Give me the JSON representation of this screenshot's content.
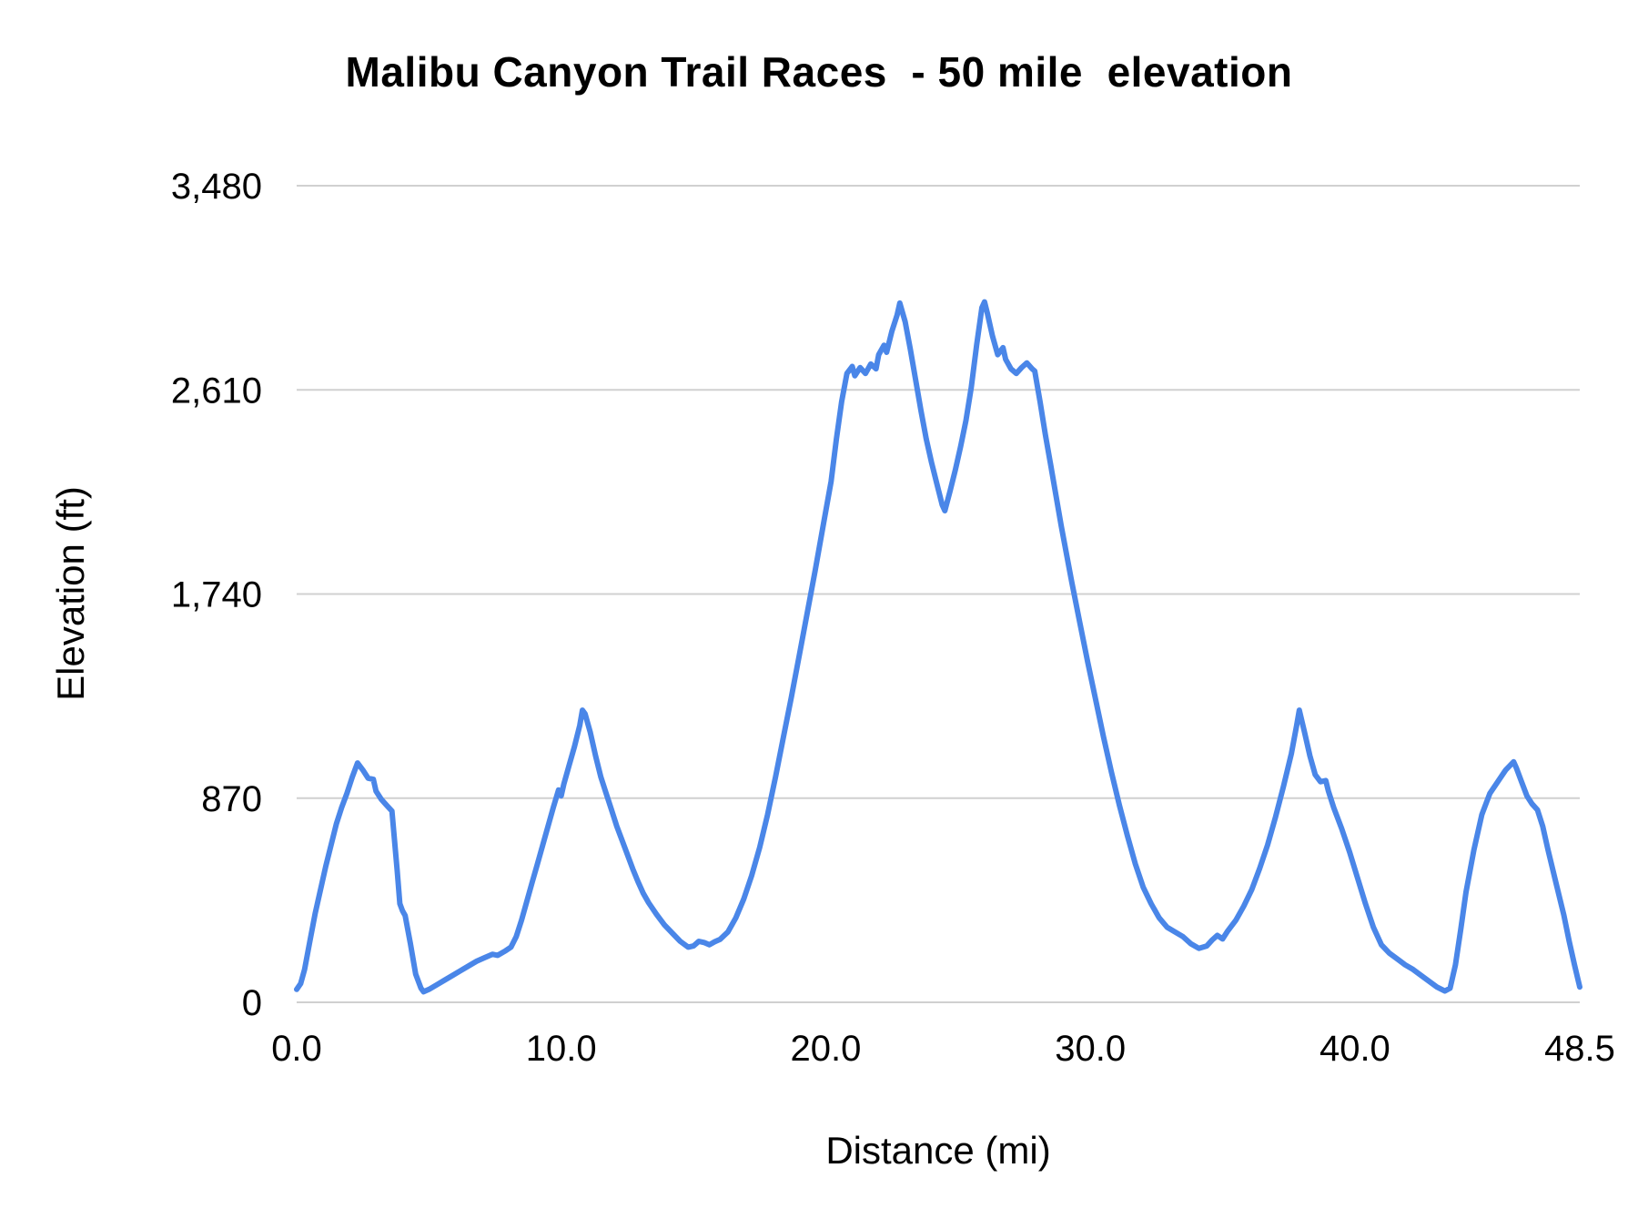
{
  "chart_data": {
    "type": "line",
    "title": "Malibu Canyon Trail Races  - 50 mile  elevation",
    "xlabel": "Distance (mi)",
    "ylabel": "Elevation (ft)",
    "xlim": [
      0,
      48.5
    ],
    "ylim": [
      0,
      3480
    ],
    "grid": true,
    "legend": "none",
    "line_color": "#4a86e8",
    "grid_color": "#d0d0d0",
    "text_color": "#000000",
    "x_ticks": [
      {
        "value": 0,
        "label": "0.0"
      },
      {
        "value": 10,
        "label": "10.0"
      },
      {
        "value": 20,
        "label": "20.0"
      },
      {
        "value": 30,
        "label": "30.0"
      },
      {
        "value": 40,
        "label": "40.0"
      },
      {
        "value": 48.5,
        "label": "48.5"
      }
    ],
    "y_ticks": [
      {
        "value": 0,
        "label": "0"
      },
      {
        "value": 870,
        "label": "870"
      },
      {
        "value": 1740,
        "label": "1,740"
      },
      {
        "value": 2610,
        "label": "2,610"
      },
      {
        "value": 3480,
        "label": "3,480"
      }
    ],
    "series": [
      {
        "name": "elevation",
        "points": [
          [
            0.0,
            55
          ],
          [
            0.15,
            80
          ],
          [
            0.3,
            140
          ],
          [
            0.5,
            260
          ],
          [
            0.7,
            380
          ],
          [
            0.9,
            480
          ],
          [
            1.1,
            580
          ],
          [
            1.3,
            670
          ],
          [
            1.5,
            760
          ],
          [
            1.7,
            830
          ],
          [
            1.9,
            890
          ],
          [
            2.1,
            960
          ],
          [
            2.3,
            1020
          ],
          [
            2.5,
            990
          ],
          [
            2.7,
            955
          ],
          [
            2.9,
            950
          ],
          [
            3.0,
            900
          ],
          [
            3.2,
            865
          ],
          [
            3.4,
            840
          ],
          [
            3.6,
            815
          ],
          [
            3.8,
            560
          ],
          [
            3.9,
            420
          ],
          [
            4.0,
            390
          ],
          [
            4.1,
            370
          ],
          [
            4.3,
            250
          ],
          [
            4.5,
            120
          ],
          [
            4.7,
            60
          ],
          [
            4.8,
            45
          ],
          [
            5.0,
            55
          ],
          [
            5.3,
            75
          ],
          [
            5.6,
            95
          ],
          [
            5.9,
            115
          ],
          [
            6.2,
            135
          ],
          [
            6.5,
            155
          ],
          [
            6.8,
            175
          ],
          [
            7.1,
            190
          ],
          [
            7.4,
            205
          ],
          [
            7.6,
            200
          ],
          [
            7.9,
            220
          ],
          [
            8.1,
            235
          ],
          [
            8.3,
            280
          ],
          [
            8.5,
            350
          ],
          [
            8.7,
            430
          ],
          [
            8.9,
            510
          ],
          [
            9.1,
            590
          ],
          [
            9.3,
            670
          ],
          [
            9.5,
            750
          ],
          [
            9.7,
            830
          ],
          [
            9.9,
            905
          ],
          [
            10.0,
            880
          ],
          [
            10.1,
            930
          ],
          [
            10.3,
            1010
          ],
          [
            10.5,
            1090
          ],
          [
            10.7,
            1180
          ],
          [
            10.8,
            1245
          ],
          [
            10.9,
            1230
          ],
          [
            11.1,
            1150
          ],
          [
            11.3,
            1050
          ],
          [
            11.5,
            960
          ],
          [
            11.7,
            890
          ],
          [
            11.9,
            820
          ],
          [
            12.1,
            750
          ],
          [
            12.3,
            690
          ],
          [
            12.5,
            630
          ],
          [
            12.7,
            570
          ],
          [
            12.9,
            515
          ],
          [
            13.1,
            465
          ],
          [
            13.3,
            425
          ],
          [
            13.6,
            375
          ],
          [
            13.9,
            330
          ],
          [
            14.2,
            295
          ],
          [
            14.5,
            260
          ],
          [
            14.8,
            235
          ],
          [
            15.0,
            240
          ],
          [
            15.2,
            260
          ],
          [
            15.4,
            255
          ],
          [
            15.6,
            245
          ],
          [
            15.8,
            258
          ],
          [
            16.0,
            268
          ],
          [
            16.3,
            300
          ],
          [
            16.6,
            360
          ],
          [
            16.9,
            440
          ],
          [
            17.2,
            540
          ],
          [
            17.5,
            660
          ],
          [
            17.8,
            800
          ],
          [
            18.1,
            960
          ],
          [
            18.4,
            1130
          ],
          [
            18.7,
            1300
          ],
          [
            19.0,
            1480
          ],
          [
            19.3,
            1660
          ],
          [
            19.6,
            1840
          ],
          [
            19.9,
            2030
          ],
          [
            20.2,
            2220
          ],
          [
            20.4,
            2400
          ],
          [
            20.6,
            2560
          ],
          [
            20.8,
            2680
          ],
          [
            21.0,
            2710
          ],
          [
            21.1,
            2670
          ],
          [
            21.3,
            2705
          ],
          [
            21.5,
            2680
          ],
          [
            21.7,
            2720
          ],
          [
            21.9,
            2700
          ],
          [
            22.0,
            2760
          ],
          [
            22.2,
            2800
          ],
          [
            22.3,
            2770
          ],
          [
            22.5,
            2860
          ],
          [
            22.7,
            2930
          ],
          [
            22.8,
            2980
          ],
          [
            23.0,
            2900
          ],
          [
            23.2,
            2780
          ],
          [
            23.4,
            2650
          ],
          [
            23.6,
            2520
          ],
          [
            23.8,
            2400
          ],
          [
            24.0,
            2300
          ],
          [
            24.2,
            2210
          ],
          [
            24.4,
            2120
          ],
          [
            24.5,
            2095
          ],
          [
            24.7,
            2180
          ],
          [
            24.9,
            2270
          ],
          [
            25.1,
            2370
          ],
          [
            25.3,
            2480
          ],
          [
            25.5,
            2620
          ],
          [
            25.7,
            2800
          ],
          [
            25.9,
            2960
          ],
          [
            26.0,
            2985
          ],
          [
            26.1,
            2940
          ],
          [
            26.3,
            2840
          ],
          [
            26.5,
            2760
          ],
          [
            26.7,
            2790
          ],
          [
            26.8,
            2740
          ],
          [
            27.0,
            2700
          ],
          [
            27.2,
            2680
          ],
          [
            27.4,
            2705
          ],
          [
            27.6,
            2725
          ],
          [
            27.8,
            2700
          ],
          [
            27.9,
            2690
          ],
          [
            28.1,
            2560
          ],
          [
            28.3,
            2420
          ],
          [
            28.5,
            2290
          ],
          [
            28.7,
            2160
          ],
          [
            28.9,
            2030
          ],
          [
            29.1,
            1910
          ],
          [
            29.3,
            1790
          ],
          [
            29.6,
            1620
          ],
          [
            29.9,
            1450
          ],
          [
            30.2,
            1290
          ],
          [
            30.5,
            1130
          ],
          [
            30.8,
            980
          ],
          [
            31.1,
            840
          ],
          [
            31.4,
            710
          ],
          [
            31.7,
            590
          ],
          [
            32.0,
            490
          ],
          [
            32.3,
            420
          ],
          [
            32.6,
            360
          ],
          [
            32.9,
            320
          ],
          [
            33.2,
            300
          ],
          [
            33.5,
            280
          ],
          [
            33.8,
            250
          ],
          [
            34.1,
            230
          ],
          [
            34.4,
            240
          ],
          [
            34.6,
            265
          ],
          [
            34.8,
            285
          ],
          [
            35.0,
            270
          ],
          [
            35.2,
            305
          ],
          [
            35.5,
            350
          ],
          [
            35.8,
            410
          ],
          [
            36.1,
            480
          ],
          [
            36.4,
            570
          ],
          [
            36.7,
            670
          ],
          [
            37.0,
            790
          ],
          [
            37.3,
            920
          ],
          [
            37.6,
            1060
          ],
          [
            37.8,
            1180
          ],
          [
            37.9,
            1245
          ],
          [
            38.1,
            1150
          ],
          [
            38.3,
            1050
          ],
          [
            38.5,
            970
          ],
          [
            38.7,
            940
          ],
          [
            38.9,
            945
          ],
          [
            39.0,
            900
          ],
          [
            39.2,
            830
          ],
          [
            39.5,
            740
          ],
          [
            39.8,
            640
          ],
          [
            40.1,
            530
          ],
          [
            40.4,
            420
          ],
          [
            40.7,
            320
          ],
          [
            41.0,
            245
          ],
          [
            41.3,
            210
          ],
          [
            41.6,
            185
          ],
          [
            41.9,
            160
          ],
          [
            42.2,
            140
          ],
          [
            42.5,
            115
          ],
          [
            42.8,
            90
          ],
          [
            43.1,
            65
          ],
          [
            43.4,
            48
          ],
          [
            43.6,
            60
          ],
          [
            43.8,
            160
          ],
          [
            44.0,
            310
          ],
          [
            44.2,
            470
          ],
          [
            44.5,
            650
          ],
          [
            44.8,
            800
          ],
          [
            45.1,
            890
          ],
          [
            45.4,
            940
          ],
          [
            45.7,
            990
          ],
          [
            46.0,
            1025
          ],
          [
            46.1,
            1000
          ],
          [
            46.3,
            940
          ],
          [
            46.5,
            880
          ],
          [
            46.7,
            845
          ],
          [
            46.9,
            820
          ],
          [
            47.1,
            750
          ],
          [
            47.3,
            650
          ],
          [
            47.6,
            510
          ],
          [
            47.9,
            370
          ],
          [
            48.1,
            260
          ],
          [
            48.3,
            160
          ],
          [
            48.5,
            65
          ]
        ]
      }
    ]
  }
}
